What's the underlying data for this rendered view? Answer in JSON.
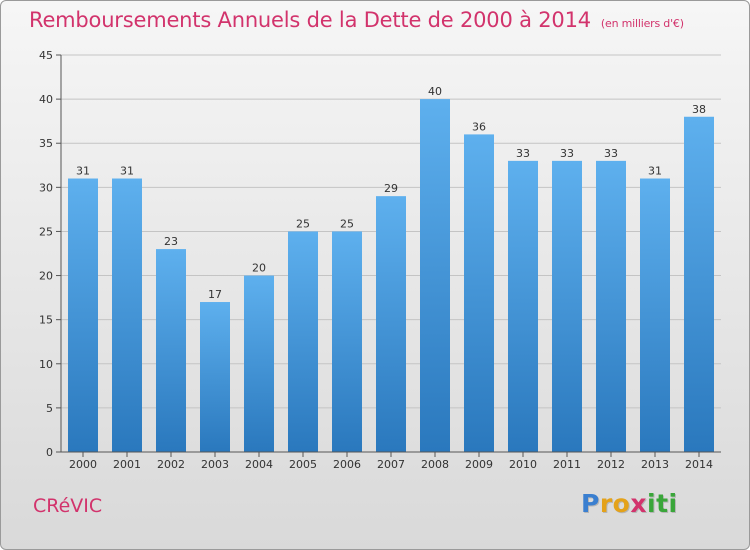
{
  "header": {
    "title": "Remboursements Annuels de la Dette de 2000 à 2014",
    "unit_note": "(en milliers d'€)"
  },
  "footer": {
    "commune": "CRéVIC",
    "brand_letters": [
      {
        "char": "P",
        "color": "#3a7fd0"
      },
      {
        "char": "r",
        "color": "#e4a21a"
      },
      {
        "char": "o",
        "color": "#e4a21a"
      },
      {
        "char": "x",
        "color": "#d2336c"
      },
      {
        "char": "i",
        "color": "#3aa63a"
      },
      {
        "char": "t",
        "color": "#3aa63a"
      },
      {
        "char": "i",
        "color": "#3aa63a"
      }
    ]
  },
  "colors": {
    "title": "#d2336c",
    "bar_top": "#5eb0ee",
    "bar_bottom": "#2a78bd",
    "grid": "#c4c4c4",
    "axis": "#555555"
  },
  "chart_data": {
    "type": "bar",
    "categories": [
      "2000",
      "2001",
      "2002",
      "2003",
      "2004",
      "2005",
      "2006",
      "2007",
      "2008",
      "2009",
      "2010",
      "2011",
      "2012",
      "2013",
      "2014"
    ],
    "values": [
      31,
      31,
      23,
      17,
      20,
      25,
      25,
      29,
      40,
      36,
      33,
      33,
      33,
      31,
      38
    ],
    "ylim": [
      0,
      45
    ],
    "yticks": [
      0,
      5,
      10,
      15,
      20,
      25,
      30,
      35,
      40,
      45
    ],
    "grid": true,
    "data_labels": true
  }
}
